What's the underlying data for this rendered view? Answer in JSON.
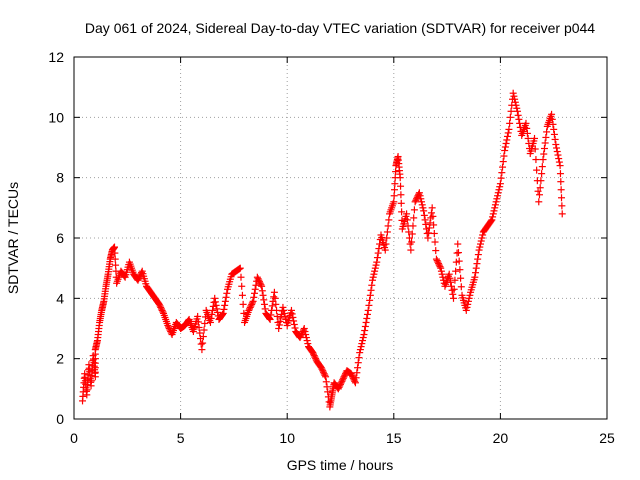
{
  "chart_data": {
    "type": "scatter",
    "title": "Day 061 of 2024, Sidereal Day-to-day VTEC variation (SDTVAR) for receiver p044",
    "xlabel": "GPS time / hours",
    "ylabel": "SDTVAR / TECUs",
    "xlim": [
      0,
      25
    ],
    "ylim": [
      0,
      12
    ],
    "xticks": [
      "0",
      "5",
      "10",
      "15",
      "20",
      "25"
    ],
    "yticks": [
      "0",
      "2",
      "4",
      "6",
      "8",
      "10",
      "12"
    ],
    "grid": true,
    "marker": "plus",
    "color": "#ff0000",
    "series": [
      {
        "name": "SDTVAR",
        "points": [
          [
            0.4,
            0.6
          ],
          [
            0.5,
            1.5
          ],
          [
            0.6,
            0.8
          ],
          [
            0.7,
            1.8
          ],
          [
            0.8,
            1.1
          ],
          [
            0.9,
            2.1
          ],
          [
            1.0,
            1.4
          ],
          [
            1.0,
            2.3
          ],
          [
            1.1,
            2.6
          ],
          [
            1.2,
            3.2
          ],
          [
            1.3,
            3.6
          ],
          [
            1.4,
            3.9
          ],
          [
            1.5,
            4.4
          ],
          [
            1.6,
            4.8
          ],
          [
            1.7,
            5.3
          ],
          [
            1.8,
            5.6
          ],
          [
            1.9,
            5.7
          ],
          [
            2.0,
            4.5
          ],
          [
            2.2,
            4.9
          ],
          [
            2.4,
            4.7
          ],
          [
            2.6,
            5.2
          ],
          [
            2.8,
            4.8
          ],
          [
            3.0,
            4.6
          ],
          [
            3.2,
            4.9
          ],
          [
            3.4,
            4.4
          ],
          [
            3.6,
            4.2
          ],
          [
            3.8,
            4.0
          ],
          [
            4.0,
            3.8
          ],
          [
            4.2,
            3.5
          ],
          [
            4.4,
            3.1
          ],
          [
            4.6,
            2.8
          ],
          [
            4.8,
            3.2
          ],
          [
            5.0,
            3.0
          ],
          [
            5.2,
            3.1
          ],
          [
            5.4,
            3.3
          ],
          [
            5.6,
            2.9
          ],
          [
            5.8,
            3.4
          ],
          [
            6.0,
            2.3
          ],
          [
            6.2,
            3.6
          ],
          [
            6.4,
            3.2
          ],
          [
            6.6,
            4.0
          ],
          [
            6.8,
            3.3
          ],
          [
            7.0,
            3.5
          ],
          [
            7.2,
            4.3
          ],
          [
            7.4,
            4.8
          ],
          [
            7.6,
            4.9
          ],
          [
            7.8,
            5.0
          ],
          [
            8.0,
            3.2
          ],
          [
            8.2,
            3.6
          ],
          [
            8.4,
            3.9
          ],
          [
            8.6,
            4.7
          ],
          [
            8.8,
            4.4
          ],
          [
            9.0,
            3.5
          ],
          [
            9.2,
            3.3
          ],
          [
            9.4,
            4.2
          ],
          [
            9.6,
            3.0
          ],
          [
            9.8,
            3.7
          ],
          [
            10.0,
            3.1
          ],
          [
            10.2,
            3.6
          ],
          [
            10.4,
            2.9
          ],
          [
            10.6,
            2.7
          ],
          [
            10.8,
            3.0
          ],
          [
            11.0,
            2.4
          ],
          [
            11.2,
            2.2
          ],
          [
            11.4,
            1.9
          ],
          [
            11.6,
            1.7
          ],
          [
            11.8,
            1.4
          ],
          [
            12.0,
            0.4
          ],
          [
            12.1,
            0.8
          ],
          [
            12.2,
            1.2
          ],
          [
            12.4,
            1.0
          ],
          [
            12.6,
            1.3
          ],
          [
            12.8,
            1.6
          ],
          [
            13.0,
            1.5
          ],
          [
            13.2,
            1.2
          ],
          [
            13.4,
            2.2
          ],
          [
            13.6,
            2.8
          ],
          [
            13.8,
            3.6
          ],
          [
            14.0,
            4.6
          ],
          [
            14.2,
            5.2
          ],
          [
            14.4,
            6.1
          ],
          [
            14.6,
            5.6
          ],
          [
            14.8,
            6.8
          ],
          [
            15.0,
            7.2
          ],
          [
            15.1,
            8.4
          ],
          [
            15.2,
            8.7
          ],
          [
            15.3,
            8.0
          ],
          [
            15.4,
            6.3
          ],
          [
            15.6,
            6.8
          ],
          [
            15.8,
            5.6
          ],
          [
            16.0,
            7.2
          ],
          [
            16.2,
            7.5
          ],
          [
            16.4,
            6.9
          ],
          [
            16.6,
            6.0
          ],
          [
            16.8,
            7.0
          ],
          [
            17.0,
            5.3
          ],
          [
            17.2,
            5.0
          ],
          [
            17.4,
            4.4
          ],
          [
            17.6,
            4.8
          ],
          [
            17.8,
            4.0
          ],
          [
            18.0,
            5.8
          ],
          [
            18.2,
            4.1
          ],
          [
            18.4,
            3.6
          ],
          [
            18.6,
            4.2
          ],
          [
            18.8,
            4.7
          ],
          [
            19.0,
            5.6
          ],
          [
            19.2,
            6.2
          ],
          [
            19.4,
            6.4
          ],
          [
            19.6,
            6.6
          ],
          [
            19.8,
            7.2
          ],
          [
            20.0,
            7.8
          ],
          [
            20.2,
            8.9
          ],
          [
            20.4,
            9.6
          ],
          [
            20.6,
            10.8
          ],
          [
            20.8,
            10.2
          ],
          [
            21.0,
            9.4
          ],
          [
            21.2,
            9.8
          ],
          [
            21.4,
            8.8
          ],
          [
            21.6,
            9.3
          ],
          [
            21.8,
            7.2
          ],
          [
            22.0,
            8.6
          ],
          [
            22.2,
            9.7
          ],
          [
            22.4,
            10.1
          ],
          [
            22.6,
            9.1
          ],
          [
            22.8,
            8.4
          ],
          [
            22.9,
            6.8
          ]
        ]
      }
    ]
  }
}
